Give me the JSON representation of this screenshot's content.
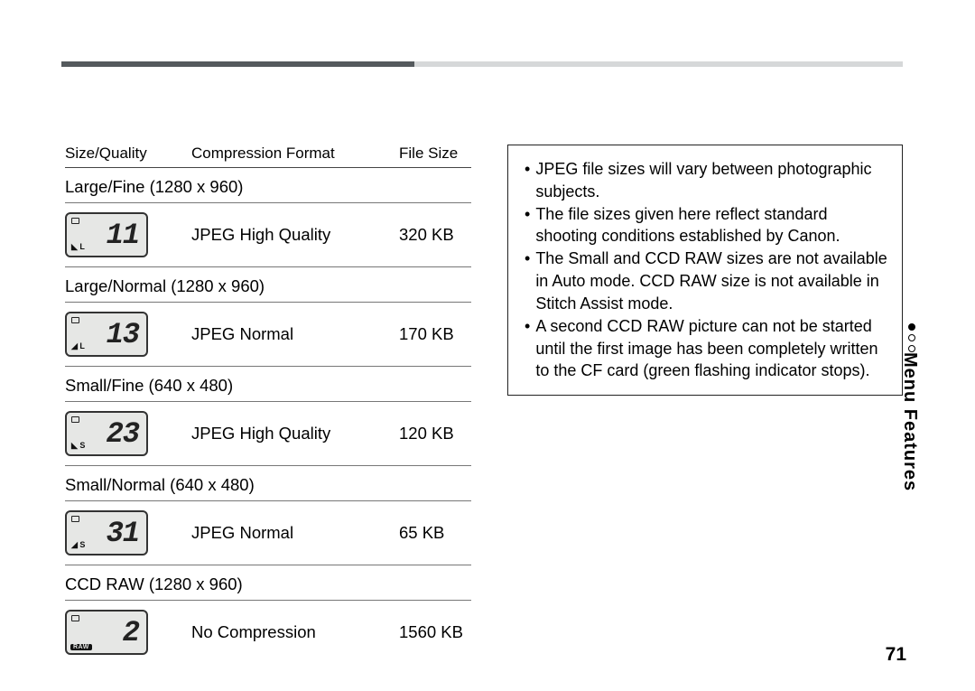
{
  "colors": {
    "bar_dark": "#555a5d",
    "bar_light": "#d6d8d9",
    "lcd_bg": "#e6e7e5",
    "dot_filled": "#000000",
    "dot_outline": "#000000"
  },
  "layout": {
    "bar_dark_pct": 42,
    "bar_light_pct": 58
  },
  "table": {
    "headers": {
      "c1": "Size/Quality",
      "c2": "Compression Format",
      "c3": "File Size"
    },
    "rows": [
      {
        "group": "Large/Fine (1280 x 960)",
        "lcd_num": "11",
        "mark": "◣ L",
        "marktype": "text",
        "comp": "JPEG High Quality",
        "size": "320 KB"
      },
      {
        "group": "Large/Normal (1280 x 960)",
        "lcd_num": "13",
        "mark": "◢ L",
        "marktype": "text",
        "comp": "JPEG Normal",
        "size": "170 KB"
      },
      {
        "group": "Small/Fine (640 x 480)",
        "lcd_num": "23",
        "mark": "◣ S",
        "marktype": "text",
        "comp": "JPEG High Quality",
        "size": "120 KB"
      },
      {
        "group": "Small/Normal (640 x 480)",
        "lcd_num": "31",
        "mark": "◢ S",
        "marktype": "text",
        "comp": "JPEG Normal",
        "size": "65 KB"
      },
      {
        "group": "CCD RAW (1280 x 960)",
        "lcd_num": "2",
        "mark": "RAW",
        "marktype": "raw",
        "comp": "No Compression",
        "size": "1560 KB"
      }
    ]
  },
  "notes": [
    "JPEG file sizes will vary between photographic subjects.",
    "The file sizes given here reflect standard shooting conditions established by Canon.",
    "The Small and CCD RAW sizes are not available in Auto mode. CCD RAW size is not available in Stitch Assist mode.",
    "A second CCD RAW picture can not be started until the first image has been completely written to the CF card (green flashing indicator stops)."
  ],
  "side_tab": "Menu Features",
  "page_number": "71"
}
